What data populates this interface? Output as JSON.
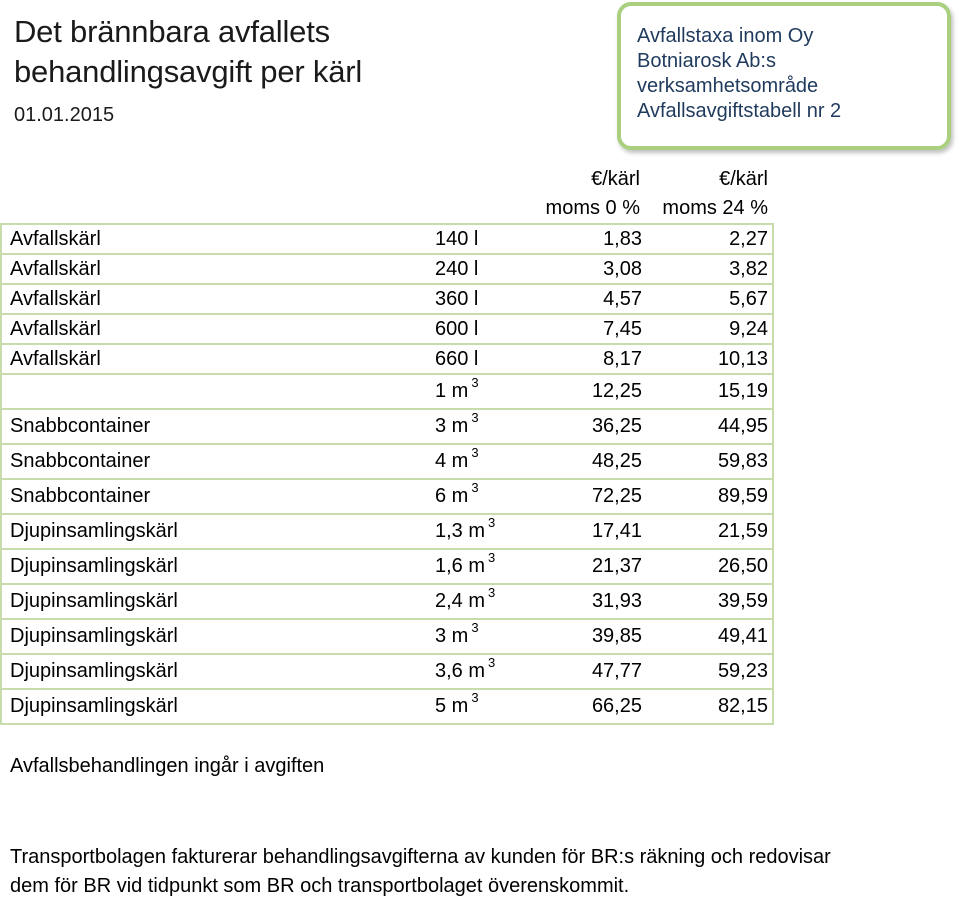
{
  "header": {
    "title_line1": "Det brännbara avfallets",
    "title_line2": "behandlingsavgift per kärl",
    "date": "01.01.2015"
  },
  "info_box": {
    "line1": "Avfallstaxa inom Oy",
    "line2": "Botniarosk Ab:s",
    "line3": "verksamhetsområde",
    "line4": "Avfallsavgiftstabell nr 2"
  },
  "columns": {
    "v0_unit": "€/kärl",
    "v0_vat": "moms 0 %",
    "v24_unit": "€/kärl",
    "v24_vat": "moms 24 %"
  },
  "rows": [
    {
      "type": "Avfallskärl",
      "size": "140 l",
      "sup": "",
      "v0": "1,83",
      "v24": "2,27"
    },
    {
      "type": "Avfallskärl",
      "size": "240 l",
      "sup": "",
      "v0": "3,08",
      "v24": "3,82"
    },
    {
      "type": "Avfallskärl",
      "size": "360 l",
      "sup": "",
      "v0": "4,57",
      "v24": "5,67"
    },
    {
      "type": "Avfallskärl",
      "size": "600 l",
      "sup": "",
      "v0": "7,45",
      "v24": "9,24"
    },
    {
      "type": "Avfallskärl",
      "size": "660 l",
      "sup": "",
      "v0": "8,17",
      "v24": "10,13"
    },
    {
      "type": "",
      "size": "1 m",
      "sup": "3",
      "v0": "12,25",
      "v24": "15,19"
    },
    {
      "type": "Snabbcontainer",
      "size": "3 m",
      "sup": "3",
      "v0": "36,25",
      "v24": "44,95"
    },
    {
      "type": "Snabbcontainer",
      "size": "4 m",
      "sup": "3",
      "v0": "48,25",
      "v24": "59,83"
    },
    {
      "type": "Snabbcontainer",
      "size": "6 m",
      "sup": "3",
      "v0": "72,25",
      "v24": "89,59"
    },
    {
      "type": "Djupinsamlingskärl",
      "size": "1,3 m",
      "sup": "3",
      "v0": "17,41",
      "v24": "21,59"
    },
    {
      "type": "Djupinsamlingskärl",
      "size": "1,6 m",
      "sup": "3",
      "v0": "21,37",
      "v24": "26,50"
    },
    {
      "type": "Djupinsamlingskärl",
      "size": "2,4 m",
      "sup": "3",
      "v0": "31,93",
      "v24": "39,59"
    },
    {
      "type": "Djupinsamlingskärl",
      "size": "3 m",
      "sup": "3",
      "v0": "39,85",
      "v24": "49,41"
    },
    {
      "type": "Djupinsamlingskärl",
      "size": "3,6 m",
      "sup": "3",
      "v0": "47,77",
      "v24": "59,23"
    },
    {
      "type": "Djupinsamlingskärl",
      "size": "5 m",
      "sup": "3",
      "v0": "66,25",
      "v24": "82,15"
    }
  ],
  "notes": {
    "included": "Avfallsbehandlingen ingår i avgiften",
    "transport_line1": "Transportbolagen fakturerar behandlingsavgifterna av kunden för BR:s räkning och redovisar",
    "transport_line2": "dem för BR vid tidpunkt som BR  och transportbolaget överenskommit."
  },
  "colors": {
    "border_green": "#a9cf7f",
    "grid_green": "#c7dcaa",
    "info_text": "#1f3a5c"
  }
}
